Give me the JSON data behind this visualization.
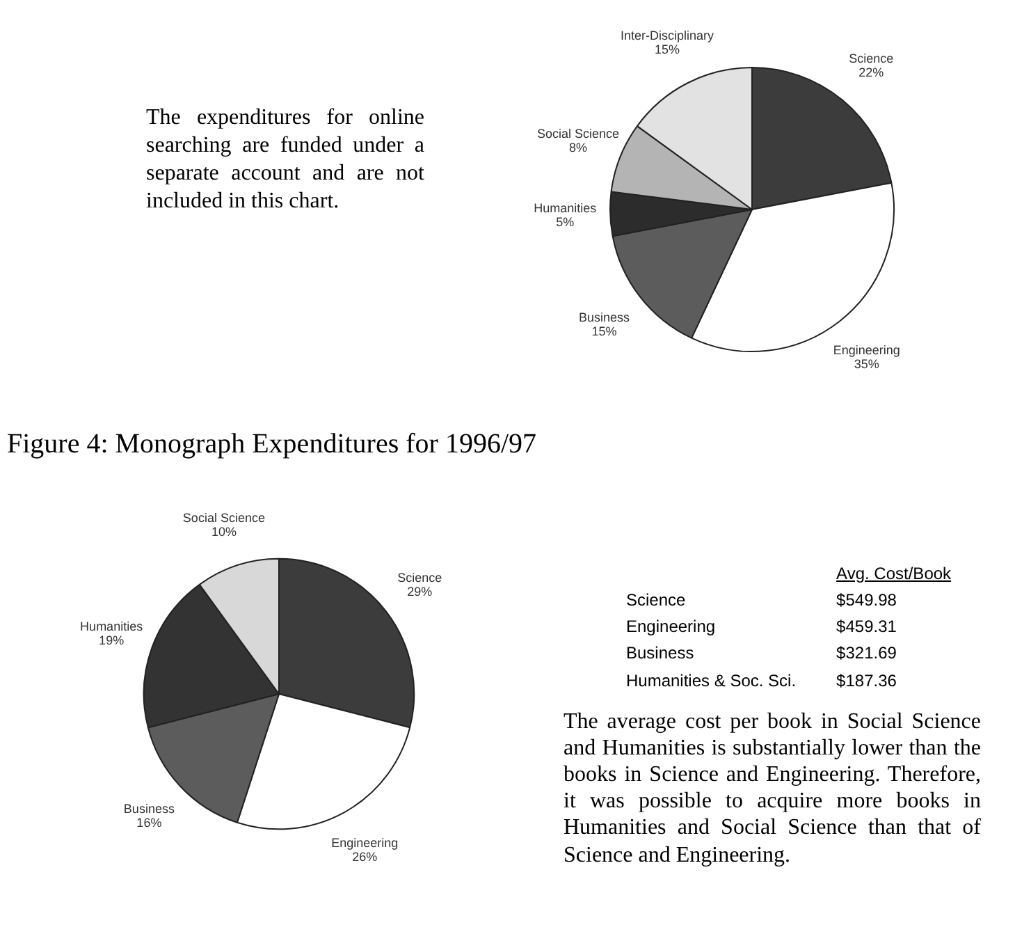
{
  "chart_data": [
    {
      "type": "pie",
      "categories": [
        "Science",
        "Engineering",
        "Business",
        "Humanities",
        "Social Science",
        "Inter-Disciplinary"
      ],
      "values": [
        22,
        35,
        15,
        5,
        8,
        15
      ],
      "value_labels": [
        "22%",
        "35%",
        "15%",
        "5%",
        "8%",
        "15%"
      ],
      "colors": [
        "#3c3c3c",
        "#ffffff",
        "#5c5c5c",
        "#2c2c2c",
        "#b4b4b4",
        "#e2e2e2"
      ],
      "annotations": [
        "The expenditures for online searching are funded under a separate account and are not included in this chart."
      ]
    },
    {
      "type": "pie",
      "title": "Figure 4:  Monograph Expenditures for 1996/97",
      "categories": [
        "Science",
        "Engineering",
        "Business",
        "Humanities",
        "Social Science"
      ],
      "values": [
        29,
        26,
        16,
        19,
        10
      ],
      "value_labels": [
        "29%",
        "26%",
        "16%",
        "19%",
        "10%"
      ],
      "colors": [
        "#3c3c3c",
        "#ffffff",
        "#5c5c5c",
        "#333333",
        "#d8d8d8"
      ]
    },
    {
      "type": "other",
      "title": "Avg. Cost/Book",
      "categories": [
        "Science",
        "Engineering",
        "Business",
        "Humanities & Soc. Sci."
      ],
      "value_labels": [
        "$549.98",
        "$459.31",
        "$321.69",
        "$187.36"
      ],
      "annotations": [
        "The average cost per book in Social Science and Humanities is substantially lower than the books in Science and Engineering. Therefore, it was possible to acquire more books in Humanities and Social Science than that of Science and Engineering."
      ]
    }
  ]
}
